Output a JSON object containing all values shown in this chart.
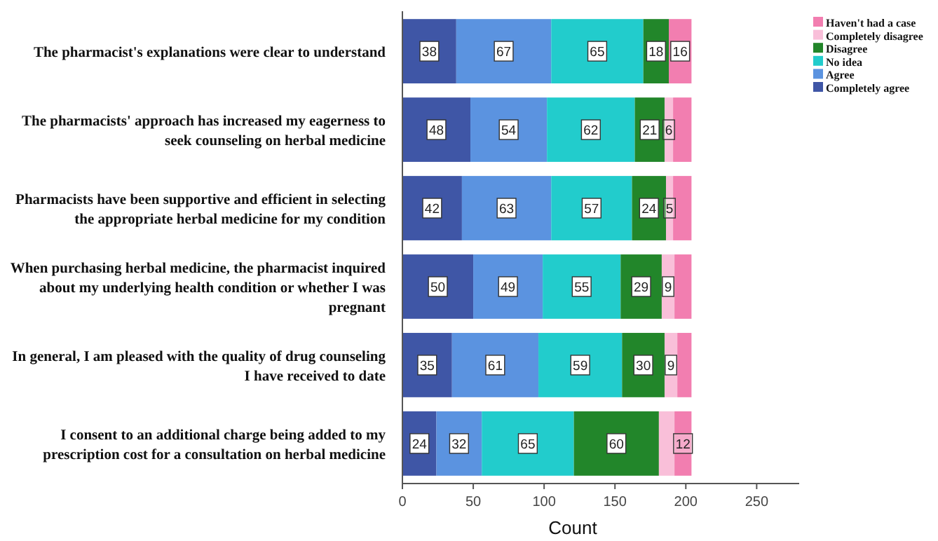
{
  "chart_data": {
    "type": "bar",
    "orientation": "horizontal",
    "stacked": true,
    "xlabel": "Count",
    "legend": "top right",
    "grid": false,
    "categories": [
      "The pharmacist's explanations were clear to understand",
      "The pharmacists' approach has increased my eagerness to seek counseling on herbal medicine",
      "Pharmacists have been supportive and efficient in selecting the appropriate herbal medicine for my condition",
      "When purchasing herbal medicine, the pharmacist inquired about my underlying health condition or whether I was pregnant",
      "In general, I am pleased with the quality of drug counseling I have received to date",
      "I consent to an additional charge being added to my prescription cost for a consultation on herbal medicine"
    ],
    "xlim": [
      0,
      280
    ],
    "xticks": [
      0,
      50,
      100,
      150,
      200,
      250
    ],
    "series": [
      {
        "name": "Completely agree",
        "color": "#3f56a6",
        "values": [
          38,
          48,
          42,
          50,
          35,
          24
        ],
        "value_labels": [
          "38",
          "48",
          "42",
          "50",
          "35",
          "24"
        ]
      },
      {
        "name": "Agree",
        "color": "#5b93e0",
        "values": [
          67,
          54,
          63,
          49,
          61,
          32
        ],
        "value_labels": [
          "67",
          "54",
          "63",
          "49",
          "61",
          "32"
        ]
      },
      {
        "name": "No idea",
        "color": "#22cccc",
        "values": [
          65,
          62,
          57,
          55,
          59,
          65
        ],
        "value_labels": [
          "65",
          "62",
          "57",
          "55",
          "59",
          "65"
        ]
      },
      {
        "name": "Disagree",
        "color": "#22862a",
        "values": [
          18,
          21,
          24,
          29,
          30,
          60
        ],
        "value_labels": [
          "18",
          "21",
          "24",
          "29",
          "30",
          "60"
        ]
      },
      {
        "name": "Completely disagree",
        "color": "#f9bfd9",
        "values": [
          0,
          6,
          5,
          9,
          9,
          11
        ],
        "value_labels": [
          null,
          "6",
          "5",
          "9",
          "9",
          null
        ]
      },
      {
        "name": "Haven't had a case",
        "color": "#f27eb0",
        "values": [
          16,
          13,
          13,
          12,
          10,
          12
        ],
        "value_labels": [
          "16",
          null,
          null,
          null,
          null,
          "12"
        ]
      }
    ]
  }
}
